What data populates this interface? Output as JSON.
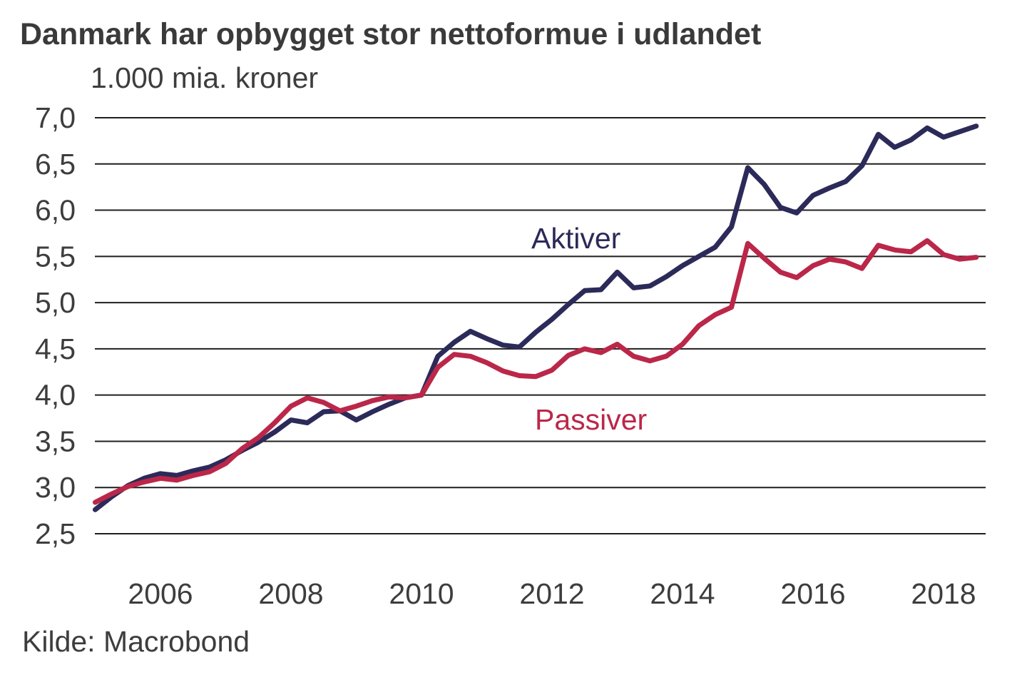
{
  "title": "Danmark har opbygget stor nettoformue i udlandet",
  "subtitle": "1.000 mia. kroner",
  "source": "Kilde: Macrobond",
  "colors": {
    "aktiver": "#2b2a59",
    "passiver": "#bb2749",
    "gridline": "#1f1f1f",
    "text": "#3d3d3d",
    "background": "#ffffff"
  },
  "chart_data": {
    "type": "line",
    "title": "Danmark har opbygget stor nettoformue i udlandet",
    "subtitle_unit": "1.000 mia. kroner",
    "source": "Kilde: Macrobond",
    "frequency": "quarterly",
    "x_start": 2005.0,
    "x_step_years": 0.25,
    "x_domain": [
      2005.0,
      2018.5
    ],
    "ylim": [
      2.5,
      7.0
    ],
    "grid": "horizontal-only",
    "x_tick_years": [
      2006,
      2008,
      2010,
      2012,
      2014,
      2016,
      2018
    ],
    "x_tick_labels": [
      "2006",
      "2008",
      "2010",
      "2012",
      "2014",
      "2016",
      "2018"
    ],
    "y_tick_values": [
      7.0,
      6.5,
      6.0,
      5.5,
      5.0,
      4.5,
      4.0,
      3.5,
      3.0,
      2.5
    ],
    "y_tick_labels": [
      "7,0",
      "6,5",
      "6,0",
      "5,5",
      "5,0",
      "4,5",
      "4,0",
      "3,5",
      "3,0",
      "2,5"
    ],
    "series": [
      {
        "name": "Aktiver",
        "color": "#2b2a59",
        "values": [
          2.76,
          2.9,
          3.02,
          3.1,
          3.15,
          3.13,
          3.18,
          3.22,
          3.3,
          3.4,
          3.49,
          3.6,
          3.73,
          3.7,
          3.82,
          3.83,
          3.73,
          3.82,
          3.9,
          3.97,
          4.0,
          4.42,
          4.57,
          4.69,
          4.61,
          4.54,
          4.52,
          4.68,
          4.82,
          4.98,
          5.13,
          5.14,
          5.33,
          5.16,
          5.18,
          5.28,
          5.4,
          5.5,
          5.6,
          5.82,
          6.46,
          6.28,
          6.03,
          5.97,
          6.16,
          6.24,
          6.31,
          6.48,
          6.82,
          6.68,
          6.76,
          6.89,
          6.79,
          6.85,
          6.91
        ]
      },
      {
        "name": "Passiver",
        "color": "#bb2749",
        "values": [
          2.84,
          2.93,
          3.01,
          3.06,
          3.1,
          3.08,
          3.13,
          3.17,
          3.26,
          3.42,
          3.54,
          3.7,
          3.88,
          3.97,
          3.92,
          3.83,
          3.88,
          3.94,
          3.98,
          3.97,
          4.0,
          4.3,
          4.44,
          4.42,
          4.35,
          4.26,
          4.21,
          4.2,
          4.27,
          4.43,
          4.5,
          4.46,
          4.55,
          4.42,
          4.37,
          4.42,
          4.55,
          4.75,
          4.87,
          4.95,
          5.64,
          5.48,
          5.33,
          5.27,
          5.4,
          5.47,
          5.44,
          5.37,
          5.62,
          5.57,
          5.55,
          5.67,
          5.52,
          5.47,
          5.49
        ]
      }
    ]
  }
}
